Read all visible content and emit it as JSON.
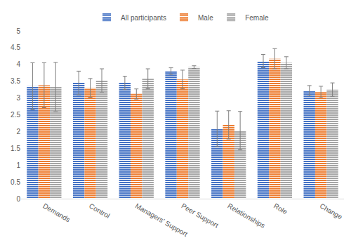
{
  "chart_data": {
    "type": "bar",
    "categories": [
      "Demands",
      "Control",
      "Managers' Support",
      "Peer Support",
      "Relationships",
      "Role",
      "Change"
    ],
    "series": [
      {
        "name": "All participants",
        "color": "#4472c4",
        "values": [
          3.35,
          3.45,
          3.45,
          3.8,
          2.08,
          4.1,
          3.22
        ],
        "errors": [
          0.7,
          0.35,
          0.2,
          0.1,
          0.53,
          0.2,
          0.15
        ]
      },
      {
        "name": "Male",
        "color": "#ed7d31",
        "values": [
          3.38,
          3.3,
          3.12,
          3.55,
          2.2,
          4.17,
          3.18
        ],
        "errors": [
          0.67,
          0.28,
          0.15,
          0.28,
          0.42,
          0.3,
          0.17
        ]
      },
      {
        "name": "Female",
        "color": "#a5a5a5",
        "values": [
          3.33,
          3.52,
          3.57,
          3.92,
          2.03,
          4.05,
          3.25
        ],
        "errors": [
          0.73,
          0.35,
          0.3,
          0.04,
          0.57,
          0.18,
          0.2
        ]
      }
    ],
    "ylim": [
      0,
      5
    ],
    "yticks": [
      0,
      0.5,
      1,
      1.5,
      2,
      2.5,
      3,
      3.5,
      4,
      4.5,
      5
    ],
    "grid": false,
    "legend": "top"
  }
}
